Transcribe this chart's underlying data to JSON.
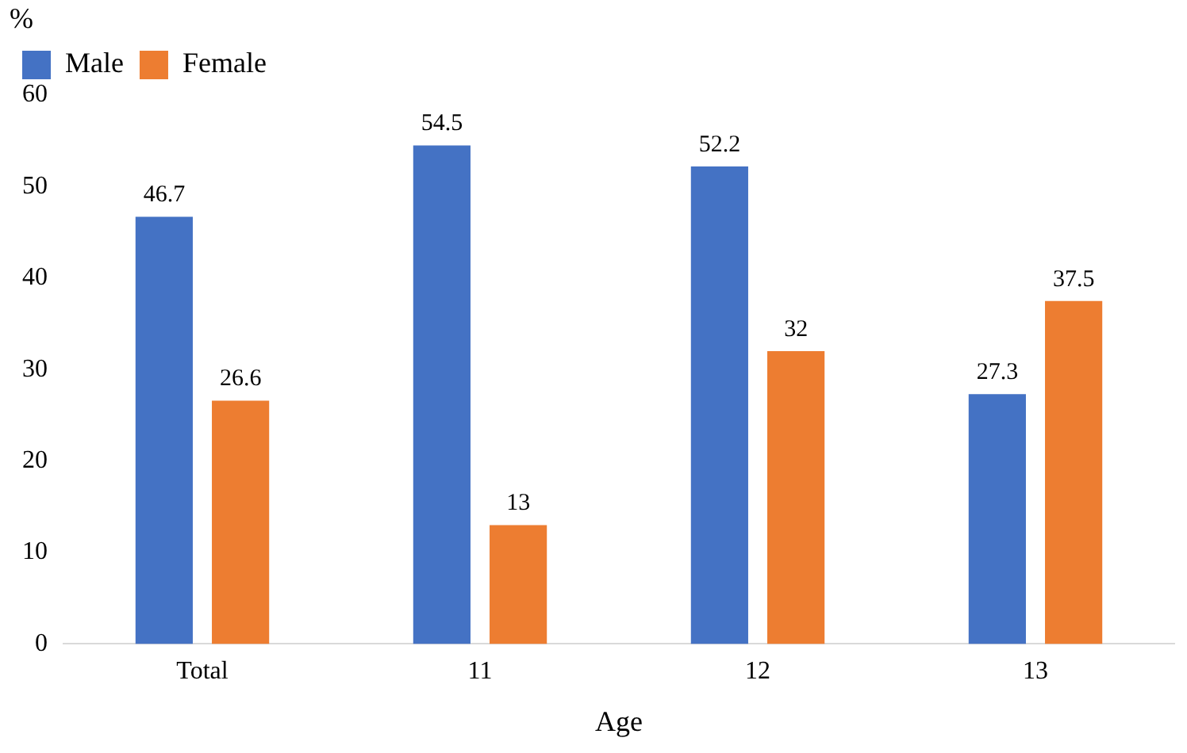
{
  "chart_data": {
    "type": "bar",
    "xlabel": "Age",
    "ylabel": "%",
    "categories": [
      "Total",
      "11",
      "12",
      "13"
    ],
    "series": [
      {
        "name": "Male",
        "color": "#4472c4",
        "values": [
          46.7,
          54.5,
          52.2,
          27.3
        ]
      },
      {
        "name": "Female",
        "color": "#ed7d31",
        "values": [
          26.6,
          13,
          32,
          37.5
        ]
      }
    ],
    "ylim": [
      0,
      60
    ],
    "yticks": [
      0,
      10,
      20,
      30,
      40,
      50,
      60
    ],
    "grid": false,
    "legend": "top left",
    "data_labels": true
  }
}
